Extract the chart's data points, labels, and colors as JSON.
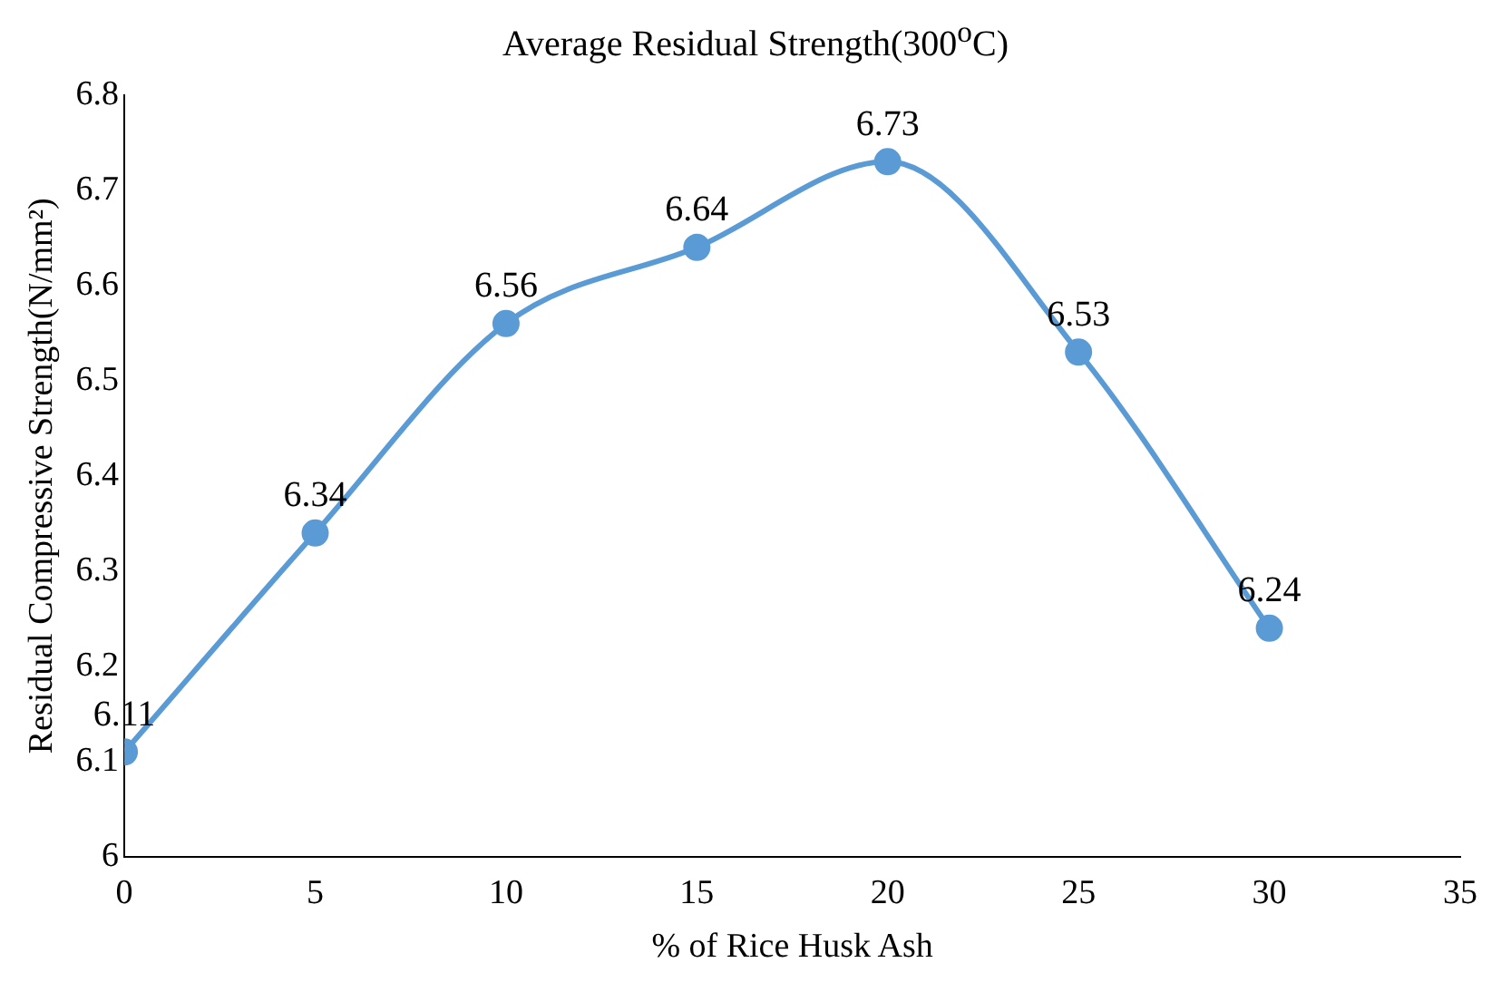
{
  "chart_data": {
    "type": "line",
    "title": "Average Residual Strength(300$^{o}$C)",
    "xlabel": "% of Rice Husk Ash",
    "ylabel": "Residual Compressive Strength(N/mm²)",
    "x": [
      0,
      5,
      10,
      15,
      20,
      25,
      30
    ],
    "series": [
      {
        "color": "#5b9bd5",
        "values": [
          6.11,
          6.34,
          6.56,
          6.64,
          6.73,
          6.53,
          6.24
        ]
      }
    ],
    "xlim": [
      0,
      35
    ],
    "xticks": [
      0,
      5,
      10,
      15,
      20,
      25,
      30,
      35
    ],
    "ylim": [
      6,
      6.8
    ],
    "yticks": [
      6,
      6.1,
      6.2,
      6.3,
      6.4,
      6.5,
      6.6,
      6.7,
      6.8
    ],
    "grid": false,
    "legend": false,
    "marker": "circle",
    "line_style": "solid",
    "data_labels": true
  }
}
